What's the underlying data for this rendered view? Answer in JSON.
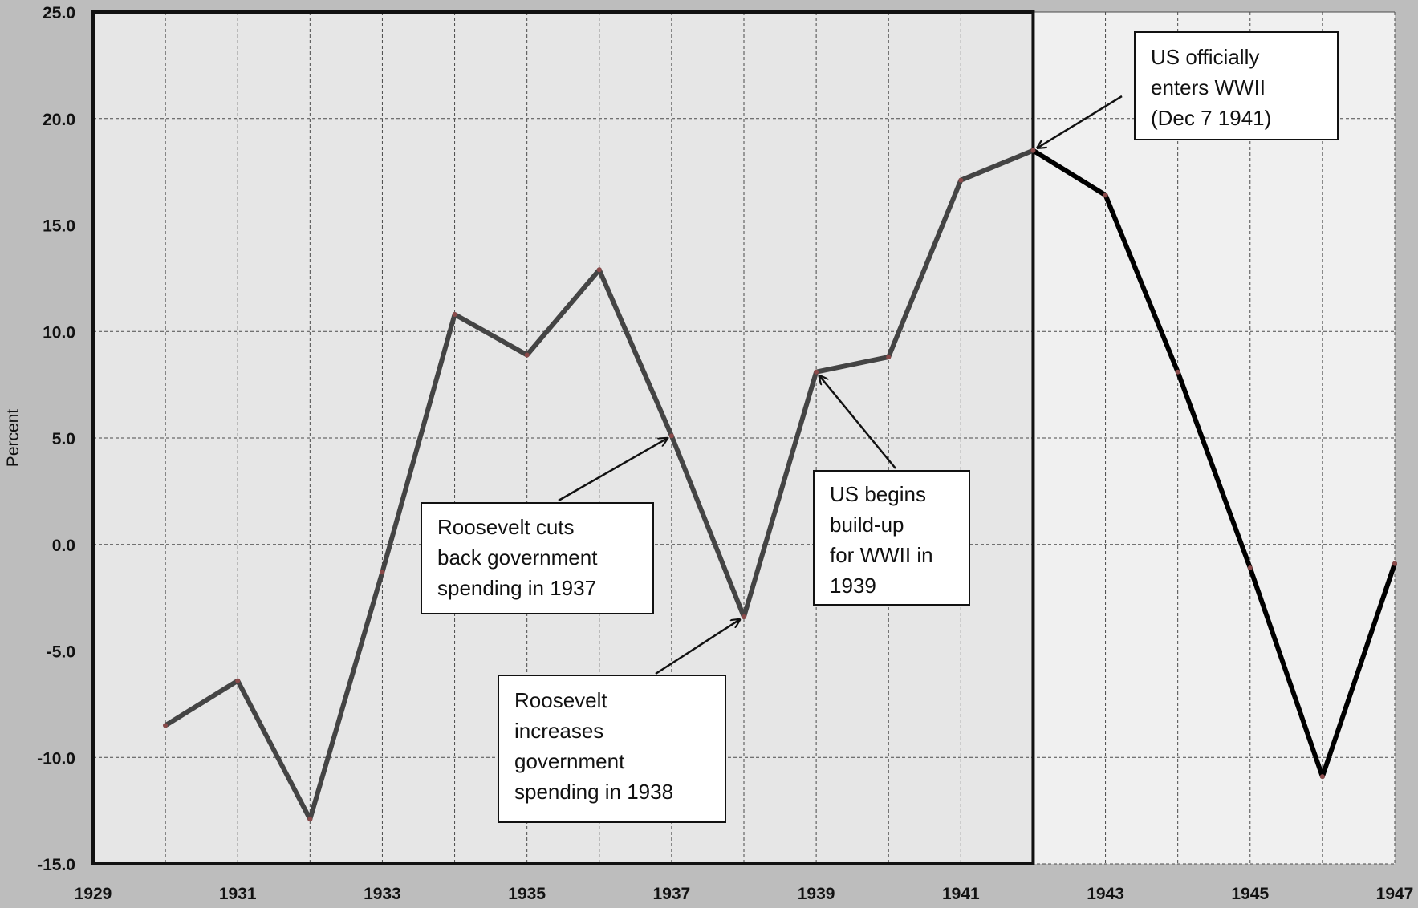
{
  "chart_data": {
    "type": "line",
    "title": "",
    "xlabel": "",
    "ylabel": "Percent",
    "xlim": [
      1929,
      1947
    ],
    "ylim": [
      -15,
      25
    ],
    "x_ticks": [
      "1929",
      "1931",
      "1933",
      "1935",
      "1937",
      "1939",
      "1941",
      "1943",
      "1945",
      "1947"
    ],
    "y_ticks": [
      "25.0",
      "20.0",
      "15.0",
      "10.0",
      "5.0",
      "0.0",
      "-5.0",
      "-10.0",
      "-15.0"
    ],
    "grid": true,
    "legend": "none",
    "shaded_region": {
      "x_start": 1929,
      "x_end": 1942
    },
    "series": [
      {
        "x": [
          1930,
          1931,
          1932,
          1933,
          1934,
          1935,
          1936,
          1937,
          1938,
          1939,
          1940,
          1941,
          1942
        ],
        "y": [
          -8.5,
          -6.4,
          -12.9,
          -1.3,
          10.8,
          8.9,
          12.9,
          5.1,
          -3.4,
          8.1,
          8.8,
          17.1,
          18.5
        ],
        "color": "#444444"
      },
      {
        "x": [
          1942,
          1943,
          1944,
          1945,
          1946,
          1947
        ],
        "y": [
          18.5,
          16.4,
          8.1,
          -1.1,
          -10.9,
          -0.9
        ],
        "color": "#000000"
      }
    ],
    "annotations": [
      {
        "lines": [
          "Roosevelt cuts",
          "back government",
          "spending in  1937"
        ],
        "point": [
          1937,
          5.1
        ]
      },
      {
        "lines": [
          "Roosevelt",
          "increases",
          "government",
          "spending in  1938"
        ],
        "point": [
          1938,
          -3.4
        ]
      },
      {
        "lines": [
          "US begins",
          "build-up",
          "for WWII in",
          "1939"
        ],
        "point": [
          1939,
          8.1
        ]
      },
      {
        "lines": [
          "US officially",
          "enters WWII",
          "(Dec 7 1941)"
        ],
        "point": [
          1942,
          18.5
        ]
      }
    ]
  },
  "colors": {
    "page_background": "#bdbdbd",
    "plot_background": "#f0f0f0",
    "shaded_background": "#e6e6e6",
    "gridline": "#4a4a4a"
  }
}
